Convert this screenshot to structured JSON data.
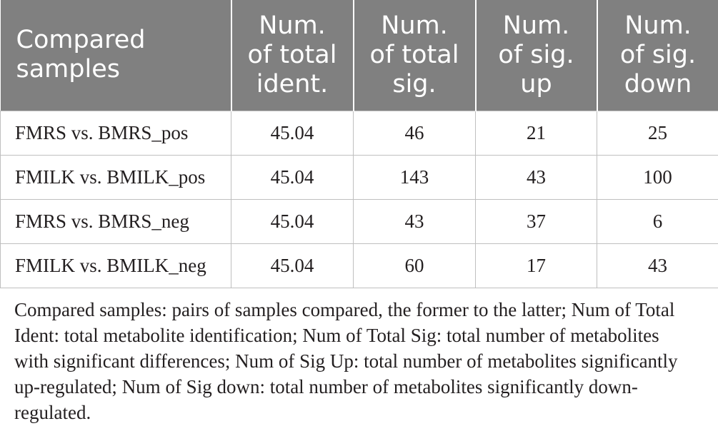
{
  "colors": {
    "header_bg": "#808080",
    "header_text": "#ffffff",
    "grid": "#bfbfbf",
    "text": "#231f20"
  },
  "table": {
    "headers": [
      {
        "lines": [
          "Compared",
          "samples"
        ]
      },
      {
        "lines": [
          "Num.",
          "of total",
          "ident."
        ]
      },
      {
        "lines": [
          "Num.",
          "of total",
          "sig."
        ]
      },
      {
        "lines": [
          "Num.",
          "of sig.",
          "up"
        ]
      },
      {
        "lines": [
          "Num.",
          "of sig.",
          "down"
        ]
      }
    ],
    "rows": [
      [
        "FMRS vs. BMRS_pos",
        "45.04",
        "46",
        "21",
        "25"
      ],
      [
        "FMILK vs. BMILK_pos",
        "45.04",
        "143",
        "43",
        "100"
      ],
      [
        "FMRS vs. BMRS_neg",
        "45.04",
        "43",
        "37",
        "6"
      ],
      [
        "FMILK vs. BMILK_neg",
        "45.04",
        "60",
        "17",
        "43"
      ]
    ]
  },
  "footnote": {
    "lines": [
      "Compared samples: pairs of samples compared, the former to the latter; Num of Total",
      "Ident: total metabolite identification; Num of Total Sig: total number of metabolites",
      "with significant differences; Num of Sig Up: total number of metabolites significantly",
      "up-regulated; Num of Sig down: total number of metabolites significantly down-",
      "regulated."
    ]
  }
}
